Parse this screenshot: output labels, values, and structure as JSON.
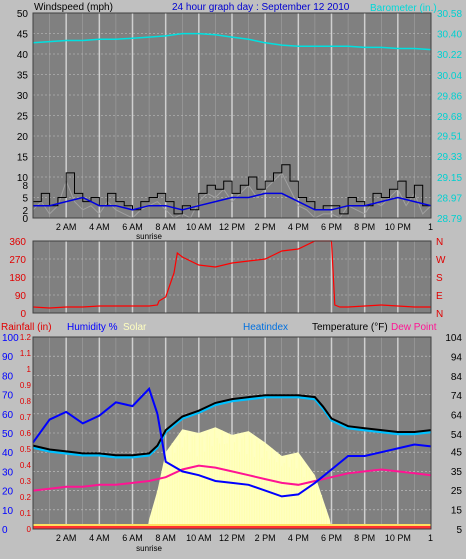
{
  "header": {
    "left_label": "Windspeed (mph)",
    "title": "24 hour graph day : September 12 2010",
    "right_label": "Barometer (in.)"
  },
  "bottom_header": {
    "rainfall_label": "Rainfall (in)",
    "humidity_label": "Humidity %",
    "solar_label": "Solar",
    "heatindex_label": "Heatindex",
    "temperature_label": "Temperature (°F)",
    "dewpoint_label": "Dew Point"
  },
  "colors": {
    "background": "#c0c0c0",
    "plot": "#808080",
    "grid": "#c8c8c8",
    "wind_speed": "#000000",
    "wind_avg": "#0000e0",
    "wind_gust_light": "#a0a0a0",
    "barometer": "#00e0e0",
    "wind_direction": "#ff0000",
    "temperature": "#000000",
    "humidity": "#0000ff",
    "heatindex": "#00c0ff",
    "dew_point": "#ff1493",
    "solar": "#ffffc0",
    "rainfall": "#ff0000"
  },
  "chart_data": [
    {
      "type": "line",
      "name": "wind-barometer",
      "x_ticks": [
        "2 AM",
        "4 AM",
        "6 AM",
        "8 AM",
        "10 AM",
        "12 PM",
        "2 PM",
        "4 PM",
        "6 PM",
        "8 PM",
        "10 PM"
      ],
      "x_range": [
        0,
        24
      ],
      "x_end_label": "1",
      "sunrise_label": "sunrise",
      "left_axis": {
        "label": "Windspeed (mph)",
        "ticks": [
          0,
          2,
          5,
          8,
          10,
          15,
          20,
          25,
          30,
          35,
          40,
          45,
          50
        ],
        "ylim": [
          0,
          50
        ]
      },
      "right_axis": {
        "label": "Barometer (in.)",
        "ticks": [
          "28.79",
          "28.97",
          "29.15",
          "29.33",
          "29.51",
          "29.68",
          "29.86",
          "30.04",
          "30.22",
          "30.40",
          "30.58"
        ],
        "ylim": [
          28.79,
          30.58
        ]
      },
      "series": [
        {
          "name": "Barometer",
          "axis": "right",
          "x": [
            0,
            1,
            2,
            3,
            4,
            5,
            6,
            7,
            8,
            9,
            10,
            11,
            12,
            13,
            14,
            15,
            16,
            17,
            18,
            19,
            20,
            21,
            22,
            23,
            24
          ],
          "values": [
            30.32,
            30.33,
            30.34,
            30.34,
            30.35,
            30.35,
            30.36,
            30.37,
            30.38,
            30.4,
            30.4,
            30.39,
            30.37,
            30.35,
            30.32,
            30.3,
            30.29,
            30.29,
            30.29,
            30.29,
            30.28,
            30.28,
            30.27,
            30.27,
            30.26
          ]
        },
        {
          "name": "Wind speed",
          "axis": "left",
          "x": [
            0,
            0.5,
            1,
            1.5,
            2,
            2.5,
            3,
            3.5,
            4,
            4.5,
            5,
            5.5,
            6,
            6.5,
            7,
            7.5,
            8,
            8.5,
            9,
            9.5,
            10,
            10.5,
            11,
            11.5,
            12,
            12.5,
            13,
            13.5,
            14,
            14.5,
            15,
            15.5,
            16,
            16.5,
            17,
            17.5,
            18,
            18.5,
            19,
            19.5,
            20,
            20.5,
            21,
            21.5,
            22,
            22.5,
            23,
            23.5,
            24
          ],
          "values": [
            4,
            6,
            3,
            5,
            11,
            6,
            4,
            5,
            3,
            6,
            4,
            3,
            2,
            4,
            5,
            6,
            4,
            1,
            3,
            2,
            6,
            8,
            7,
            9,
            6,
            8,
            10,
            7,
            9,
            11,
            13,
            9,
            5,
            4,
            2,
            3,
            3,
            1,
            5,
            4,
            3,
            6,
            5,
            7,
            9,
            5,
            8,
            3,
            5
          ]
        },
        {
          "name": "Wind average",
          "axis": "left",
          "x": [
            0,
            1,
            2,
            3,
            4,
            5,
            6,
            7,
            8,
            9,
            10,
            11,
            12,
            13,
            14,
            15,
            16,
            17,
            18,
            19,
            20,
            21,
            22,
            23,
            24
          ],
          "values": [
            3,
            3,
            4,
            5,
            3,
            3,
            2,
            3,
            3,
            2,
            3,
            4,
            5,
            5,
            6,
            6,
            4,
            2,
            2,
            3,
            3,
            4,
            5,
            4,
            3
          ]
        }
      ]
    },
    {
      "type": "line",
      "name": "wind-direction",
      "left_axis": {
        "ticks": [
          0,
          90,
          180,
          270,
          360
        ],
        "ylim": [
          0,
          360
        ]
      },
      "right_labels": [
        "N",
        "W",
        "S",
        "E",
        "N"
      ],
      "series": [
        {
          "name": "Wind direction",
          "x": [
            0,
            1,
            2,
            3,
            4,
            5,
            6,
            7,
            7.5,
            7.6,
            8,
            8.5,
            8.7,
            9,
            10,
            11,
            12,
            13,
            14,
            14.5,
            15,
            16,
            17,
            17.5,
            18,
            18.2,
            18.5,
            19,
            20,
            21,
            22,
            23,
            24
          ],
          "values": [
            30,
            25,
            30,
            30,
            35,
            35,
            35,
            35,
            40,
            60,
            80,
            200,
            300,
            280,
            240,
            230,
            250,
            260,
            270,
            290,
            310,
            320,
            360,
            360,
            360,
            40,
            30,
            30,
            35,
            40,
            35,
            30,
            30
          ]
        }
      ]
    },
    {
      "type": "line",
      "name": "temperature-humidity",
      "left_axis": {
        "label": "Humidity %",
        "ticks": [
          0,
          10,
          20,
          30,
          40,
          50,
          60,
          70,
          80,
          90,
          100
        ],
        "ylim": [
          0,
          100
        ]
      },
      "rain_axis": {
        "label": "Rainfall (in)",
        "ticks": [
          "0",
          "0.1",
          "0.2",
          "0.3",
          "0.4",
          "0.5",
          "0.6",
          "0.7",
          "0.8",
          "0.9",
          "1",
          "1.1",
          "1.2"
        ],
        "ylim": [
          0,
          1.2
        ]
      },
      "right_axis": {
        "label": "Temperature (°F)",
        "ticks": [
          5,
          15,
          25,
          35,
          45,
          54,
          64,
          74,
          84,
          94,
          104
        ],
        "ylim": [
          5,
          104
        ]
      },
      "series": [
        {
          "name": "Temperature",
          "axis": "right",
          "x": [
            0,
            1,
            2,
            3,
            4,
            5,
            6,
            7,
            7.5,
            8,
            9,
            10,
            11,
            12,
            13,
            14,
            15,
            16,
            17,
            17.5,
            18,
            19,
            20,
            21,
            22,
            23,
            24
          ],
          "values": [
            48,
            46,
            45,
            44,
            44,
            43,
            43,
            44,
            48,
            56,
            63,
            66,
            70,
            72,
            73,
            74,
            74,
            74,
            73,
            68,
            62,
            58,
            57,
            56,
            55,
            55,
            56
          ]
        },
        {
          "name": "Heatindex",
          "axis": "right",
          "x": [
            0,
            1,
            2,
            3,
            4,
            5,
            6,
            7,
            7.5,
            8,
            9,
            10,
            11,
            12,
            13,
            14,
            15,
            16,
            17,
            17.5,
            18,
            19,
            20,
            21,
            22,
            23,
            24
          ],
          "values": [
            47,
            45,
            44,
            43,
            43,
            42,
            42,
            43,
            47,
            55,
            62,
            65,
            69,
            71,
            72,
            73,
            73,
            73,
            72,
            67,
            61,
            57,
            56,
            55,
            54,
            54,
            55
          ]
        },
        {
          "name": "Humidity",
          "axis": "left",
          "x": [
            0,
            1,
            2,
            3,
            4,
            5,
            6,
            7,
            7.5,
            8,
            9,
            10,
            11,
            12,
            13,
            14,
            15,
            16,
            17,
            18,
            19,
            20,
            21,
            22,
            23,
            24
          ],
          "values": [
            45,
            57,
            61,
            55,
            59,
            66,
            64,
            73,
            60,
            35,
            30,
            28,
            25,
            24,
            23,
            20,
            17,
            18,
            24,
            31,
            38,
            38,
            40,
            42,
            44,
            43
          ]
        },
        {
          "name": "Dew Point",
          "axis": "left",
          "x": [
            0,
            1,
            2,
            3,
            4,
            5,
            6,
            7,
            8,
            9,
            10,
            11,
            12,
            13,
            14,
            15,
            16,
            17,
            18,
            19,
            20,
            21,
            22,
            23,
            24
          ],
          "values": [
            20,
            21,
            22,
            22,
            23,
            23,
            24,
            25,
            27,
            31,
            33,
            32,
            30,
            28,
            26,
            24,
            23,
            25,
            27,
            29,
            30,
            31,
            30,
            29,
            28
          ]
        },
        {
          "name": "Solar",
          "axis": "left",
          "x": [
            0,
            6.9,
            7,
            7.5,
            8,
            9,
            10,
            11,
            12,
            13,
            14,
            15,
            16,
            17,
            17.9,
            18,
            24
          ],
          "values": [
            0,
            0,
            5,
            20,
            40,
            52,
            50,
            53,
            49,
            51,
            45,
            38,
            40,
            28,
            5,
            0,
            0
          ]
        }
      ]
    }
  ]
}
